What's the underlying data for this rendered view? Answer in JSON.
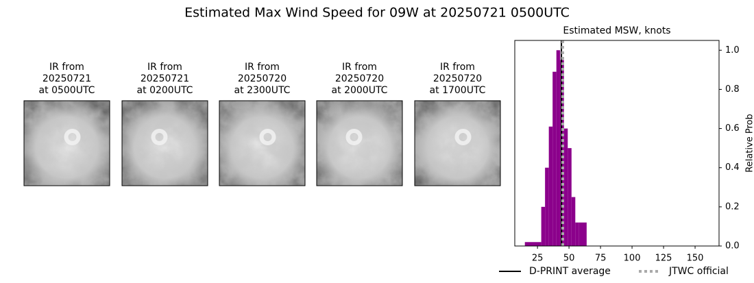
{
  "title": "Estimated Max Wind Speed for 09W at 20250721 0500UTC",
  "panels": [
    {
      "lines": [
        "IR from",
        "20250721",
        "at 0500UTC"
      ]
    },
    {
      "lines": [
        "IR from",
        "20250721",
        "at 0200UTC"
      ]
    },
    {
      "lines": [
        "IR from",
        "20250720",
        "at 2300UTC"
      ]
    },
    {
      "lines": [
        "IR from",
        "20250720",
        "at 2000UTC"
      ]
    },
    {
      "lines": [
        "IR from",
        "20250720",
        "at 1700UTC"
      ]
    }
  ],
  "chart_data": {
    "type": "histogram",
    "title": "Estimated MSW, knots",
    "ylabel": "Relative Prob",
    "bins": [
      15,
      28,
      31,
      34,
      37,
      40,
      43,
      46,
      49,
      52,
      55,
      58,
      64
    ],
    "values": [
      0.02,
      0.2,
      0.4,
      0.61,
      0.89,
      1.0,
      0.95,
      0.6,
      0.5,
      0.25,
      0.12,
      0.12
    ],
    "color": "#8b008b",
    "xlim": [
      7,
      169
    ],
    "xticks": [
      25,
      50,
      75,
      100,
      125,
      150
    ],
    "ylim": [
      0,
      1.05
    ],
    "yticks": [
      {
        "value": 0,
        "label": "0.0"
      },
      {
        "value": 0.2,
        "label": "0.2"
      },
      {
        "value": 0.4,
        "label": "0.4"
      },
      {
        "value": 0.6,
        "label": "0.6"
      },
      {
        "value": 0.8,
        "label": "0.8"
      },
      {
        "value": 1,
        "label": "1.0"
      }
    ],
    "lines": [
      {
        "name": "D-PRINT average",
        "value": 44,
        "color": "#000000",
        "style": "solid"
      },
      {
        "name": "JTWC official",
        "value": 45,
        "color": "#aaaaaa",
        "style": "dotted"
      }
    ]
  }
}
